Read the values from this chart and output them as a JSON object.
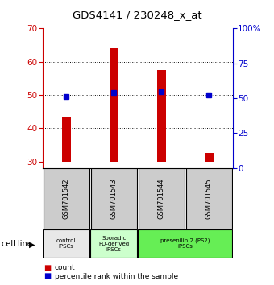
{
  "title": "GDS4141 / 230248_x_at",
  "samples": [
    "GSM701542",
    "GSM701543",
    "GSM701544",
    "GSM701545"
  ],
  "bar_bottom": 30,
  "bar_tops": [
    43.5,
    64.0,
    57.5,
    32.5
  ],
  "percentile_values": [
    51.5,
    54.0,
    54.5,
    52.5
  ],
  "ylim_left": [
    28,
    70
  ],
  "ylim_right": [
    0,
    100
  ],
  "yticks_left": [
    30,
    40,
    50,
    60,
    70
  ],
  "yticks_right": [
    0,
    25,
    50,
    75,
    100
  ],
  "bar_color": "#cc0000",
  "square_color": "#0000cc",
  "left_tick_color": "#cc0000",
  "right_tick_color": "#0000cc",
  "grid_yticks": [
    40,
    50,
    60
  ],
  "sample_bg_color": "#cccccc",
  "cat_configs": [
    [
      0,
      1,
      "control\nIPSCs",
      "#e8e8e8"
    ],
    [
      1,
      2,
      "Sporadic\nPD-derived\niPSCs",
      "#ccffcc"
    ],
    [
      2,
      4,
      "presenilin 2 (PS2)\niPSCs",
      "#66ee55"
    ]
  ],
  "cell_line_label": "cell line",
  "legend_items": [
    "count",
    "percentile rank within the sample"
  ]
}
